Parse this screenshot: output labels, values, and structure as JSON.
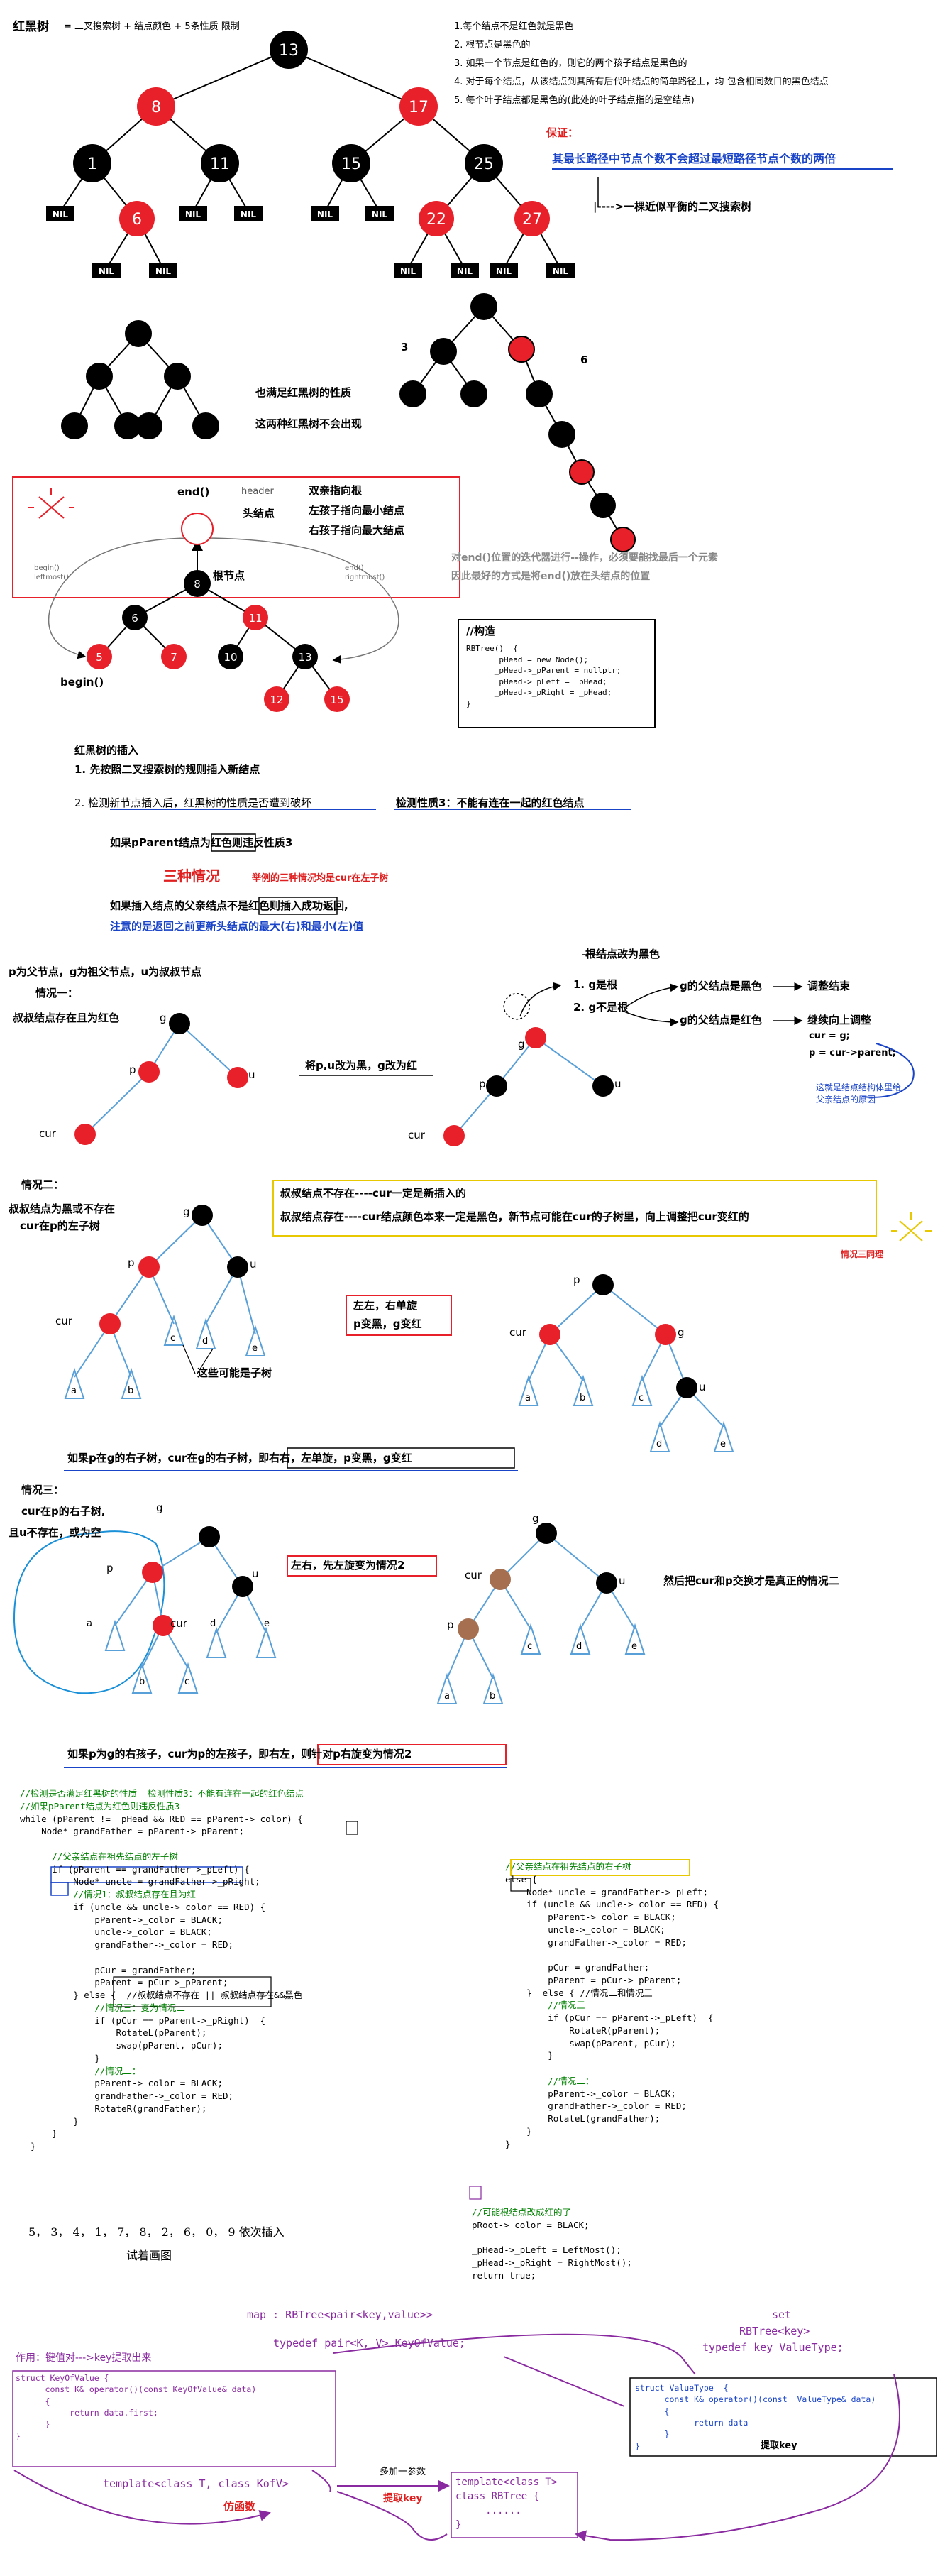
{
  "section1": {
    "title": "红黑树",
    "formula": "= 二叉搜索树 + 结点颜色 + 5条性质 限制",
    "rules": [
      "1.每个结点不是红色就是黑色",
      "2. 根节点是黑色的",
      "3. 如果一个节点是红色的，则它的两个孩子结点是黑色的",
      "4. 对于每个结点，从该结点到其所有后代叶结点的简单路径上，均 包含相同数目的黑色结点",
      "5. 每个叶子结点都是黑色的(此处的叶子结点指的是空结点)"
    ],
    "guarantee_label": "保证：",
    "guarantee_text": "其最长路径中节点个数不会超过最短路径节点个数的两倍",
    "guarantee_arrow": "|---->一棵近似平衡的二叉搜索树",
    "tree_nodes": [
      "13",
      "8",
      "17",
      "1",
      "11",
      "15",
      "25",
      "6",
      "22",
      "27"
    ],
    "nil": "NIL"
  },
  "section2": {
    "label_3": "3",
    "label_6": "6",
    "satisfies": "也满足红黑树的性质",
    "not_appear": "这两种红黑树不会出现"
  },
  "section3": {
    "end_label": "end()",
    "header_label": "header",
    "head_node_label": "头结点",
    "root_label": "根节点",
    "begin_label": "begin()",
    "parent_to_root": "双亲指向根",
    "left_to_min": "左孩子指向最小结点",
    "right_to_max": "右孩子指向最大结点",
    "left_small": [
      "begin()",
      "leftmost()"
    ],
    "right_small": [
      "end()",
      "rightmost()"
    ],
    "nodes": [
      "8",
      "6",
      "11",
      "5",
      "7",
      "10",
      "13",
      "12",
      "15"
    ],
    "note_line1": "对end()位置的迭代器进行--操作，必须要能找最后一个元素",
    "note_line2": "因此最好的方式是将end()放在头结点的位置",
    "ctor_title": "//构造",
    "ctor_code": "RBTree()  {\n      _pHead = new Node();\n      _pHead->_pParent = nullptr;\n      _pHead->_pLeft = _pHead;\n      _pHead->_pRight = _pHead;\n}"
  },
  "section4": {
    "insert_title": "红黑树的插入",
    "step1": "1. 先按照二叉搜索树的规则插入新结点",
    "step2_a": "2.  检测新节点插入后，红黑树的性质是否遭到破坏",
    "step2_b": "检测性质3：不能有连在一起的红色结点",
    "pparent_red": "如果pParent结点为红色则违反性质3",
    "three_cases": "三种情况",
    "three_cases_note": "举例的三种情况均是cur在左子树",
    "parent_black": "如果插入结点的父亲结点不是红色则插入成功返回,",
    "note_blue": "注意的是返回之前更新头结点的最大(右)和最小(左)值"
  },
  "case1": {
    "legend": "p为父节点，g为祖父节点，u为叔叔节点",
    "title": "情况一：",
    "desc": "叔叔结点存在且为红色",
    "action": "将p,u改为黑，g改为红",
    "root_black": "根结点改为黑色",
    "g_is_root": "1. g是根",
    "g_not_root": "2. g不是根",
    "gp_black": "g的父结点是黑色",
    "adjust_end": "调整结束",
    "gp_red": "g的父结点是红色",
    "continue_up": "继续向上调整",
    "cur_g": "cur = g;",
    "p_parent": "p = cur->parent;",
    "blue_note1": "这就是结点结构体里给",
    "blue_note2": "父亲结点的原因",
    "labels": {
      "g": "g",
      "p": "p",
      "u": "u",
      "cur": "cur"
    }
  },
  "case2": {
    "title": "情况二：",
    "desc1": "叔叔结点为黑或不存在",
    "desc2": "cur在p的左子树",
    "box1": "叔叔结点不存在----cur一定是新插入的",
    "box2": "叔叔结点存在----cur结点颜色本来一定是黑色，新节点可能在cur的子树里，向上调整把cur变红的",
    "same_logic": "情况三同理",
    "rot1": "左左，右单旋",
    "rot2": "p变黑，g变红",
    "subtree_note": "这些可能是子树",
    "mirror": "如果p在g的右子树，cur在g的右子树，即右右，左单旋，p变黑，g变红",
    "subtrees": {
      "a": "a",
      "b": "b",
      "c": "c",
      "d": "d",
      "e": "e"
    }
  },
  "case3": {
    "title": "情况三：",
    "desc1": "cur在p的右子树,",
    "desc2": "且u不存在，或为空",
    "rot": "左右，先左旋变为情况2",
    "swap": "然后把cur和p交换才是真正的情况二",
    "mirror": "如果p为g的右孩子，cur为p的左孩子，即右左，则针对p右旋变为情况2"
  },
  "code": {
    "left": [
      [
        "cm",
        "//检测是否满足红黑树的性质--检测性质3：不能有连在一起的红色结点"
      ],
      [
        "cm",
        "//如果pParent结点为红色则违反性质3"
      ],
      [
        "",
        "while (pParent != _pHead && RED == pParent->_color) {"
      ],
      [
        "",
        "    Node* grandFather = pParent->_pParent;"
      ],
      [
        "",
        ""
      ],
      [
        "cm",
        "      //父亲结点在祖先结点的左子树"
      ],
      [
        "",
        "      if (pParent == grandFather->_pLeft) {"
      ],
      [
        "",
        "          Node* uncle = grandFather->_pRight;"
      ],
      [
        "cm",
        "          //情况1：叔叔结点存在且为红"
      ],
      [
        "",
        "          if (uncle && uncle->_color == RED) {"
      ],
      [
        "",
        "              pParent->_color = BLACK;"
      ],
      [
        "",
        "              uncle->_color = BLACK;"
      ],
      [
        "",
        "              grandFather->_color = RED;"
      ],
      [
        "",
        ""
      ],
      [
        "",
        "              pCur = grandFather;"
      ],
      [
        "",
        "              pParent = pCur->_pParent;"
      ],
      [
        "",
        "          } else {  //叔叔结点不存在 || 叔叔结点存在&&黑色"
      ],
      [
        "cm",
        "              //情况三：变为情况二"
      ],
      [
        "",
        "              if (pCur == pParent->_pRight)  {"
      ],
      [
        "",
        "                  RotateL(pParent);"
      ],
      [
        "",
        "                  swap(pParent, pCur);"
      ],
      [
        "",
        "              }"
      ],
      [
        "cm",
        "              //情况二："
      ],
      [
        "",
        "              pParent->_color = BLACK;"
      ],
      [
        "",
        "              grandFather->_color = RED;"
      ],
      [
        "",
        "              RotateR(grandFather);"
      ],
      [
        "",
        "          }"
      ],
      [
        "",
        "      }"
      ],
      [
        "",
        "  }"
      ]
    ],
    "right": [
      [
        "cm",
        "//父亲结点在祖先结点的右子树"
      ],
      [
        "",
        "else {"
      ],
      [
        "",
        "    Node* uncle = grandFather->_pLeft;"
      ],
      [
        "",
        "    if (uncle && uncle->_color == RED) {"
      ],
      [
        "",
        "        pParent->_color = BLACK;"
      ],
      [
        "",
        "        uncle->_color = BLACK;"
      ],
      [
        "",
        "        grandFather->_color = RED;"
      ],
      [
        "",
        ""
      ],
      [
        "",
        "        pCur = grandFather;"
      ],
      [
        "",
        "        pParent = pCur->_pParent;"
      ],
      [
        "",
        "    }  else { //情况二和情况三"
      ],
      [
        "cm",
        "        //情况三"
      ],
      [
        "",
        "        if (pCur == pParent->_pLeft)  {"
      ],
      [
        "",
        "            RotateR(pParent);"
      ],
      [
        "",
        "            swap(pParent, pCur);"
      ],
      [
        "",
        "        }"
      ],
      [
        "",
        ""
      ],
      [
        "cm",
        "        //情况二："
      ],
      [
        "",
        "        pParent->_color = BLACK;"
      ],
      [
        "",
        "        grandFather->_color = RED;"
      ],
      [
        "",
        "        RotateL(grandFather);"
      ],
      [
        "",
        "    }"
      ],
      [
        "",
        "}"
      ]
    ],
    "tail": [
      [
        "cm",
        "//可能根结点改成红的了"
      ],
      [
        "",
        "pRoot->_color = BLACK;"
      ],
      [
        "",
        ""
      ],
      [
        "",
        "_pHead->_pLeft = LeftMost();"
      ],
      [
        "",
        "_pHead->_pRight = RightMost();"
      ],
      [
        "",
        "return true;"
      ]
    ]
  },
  "exercise": {
    "seq": "5， 3， 4， 1， 7， 8， 2， 6， 0， 9   依次插入",
    "draw": "试着画图"
  },
  "bottom": {
    "map": "map   : RBTree<pair<key,value>>",
    "map_typedef": "typedef pair<K, V> KeyOfValue;",
    "set": "set",
    "set_rb": "RBTree<key>",
    "set_typedef": "typedef key ValueType;",
    "left_title": "作用：键值对--->key提取出来",
    "left_code": "struct KeyOfValue {\n      const K& operator()(const KeyOfValue& data)\n      {\n           return data.first;\n      }\n}",
    "right_code": "struct ValueType  {\n      const K& operator()(const  ValueType& data)\n      {\n            return data\n      }\n}",
    "right_note": "提取key",
    "template_line": "template<class T, class KofV>",
    "functor": "仿函数",
    "extra_param": "多加一参数",
    "extract_key": "提取key",
    "template_box": "template<class T>\nclass RBTree {\n     ......\n}"
  },
  "colors": {
    "red_node": "#e8202a",
    "black_node": "#000000",
    "blue_line": "#5aa0d8",
    "purple_line": "#8a2aa0",
    "blue_text": "#1a44c8"
  }
}
